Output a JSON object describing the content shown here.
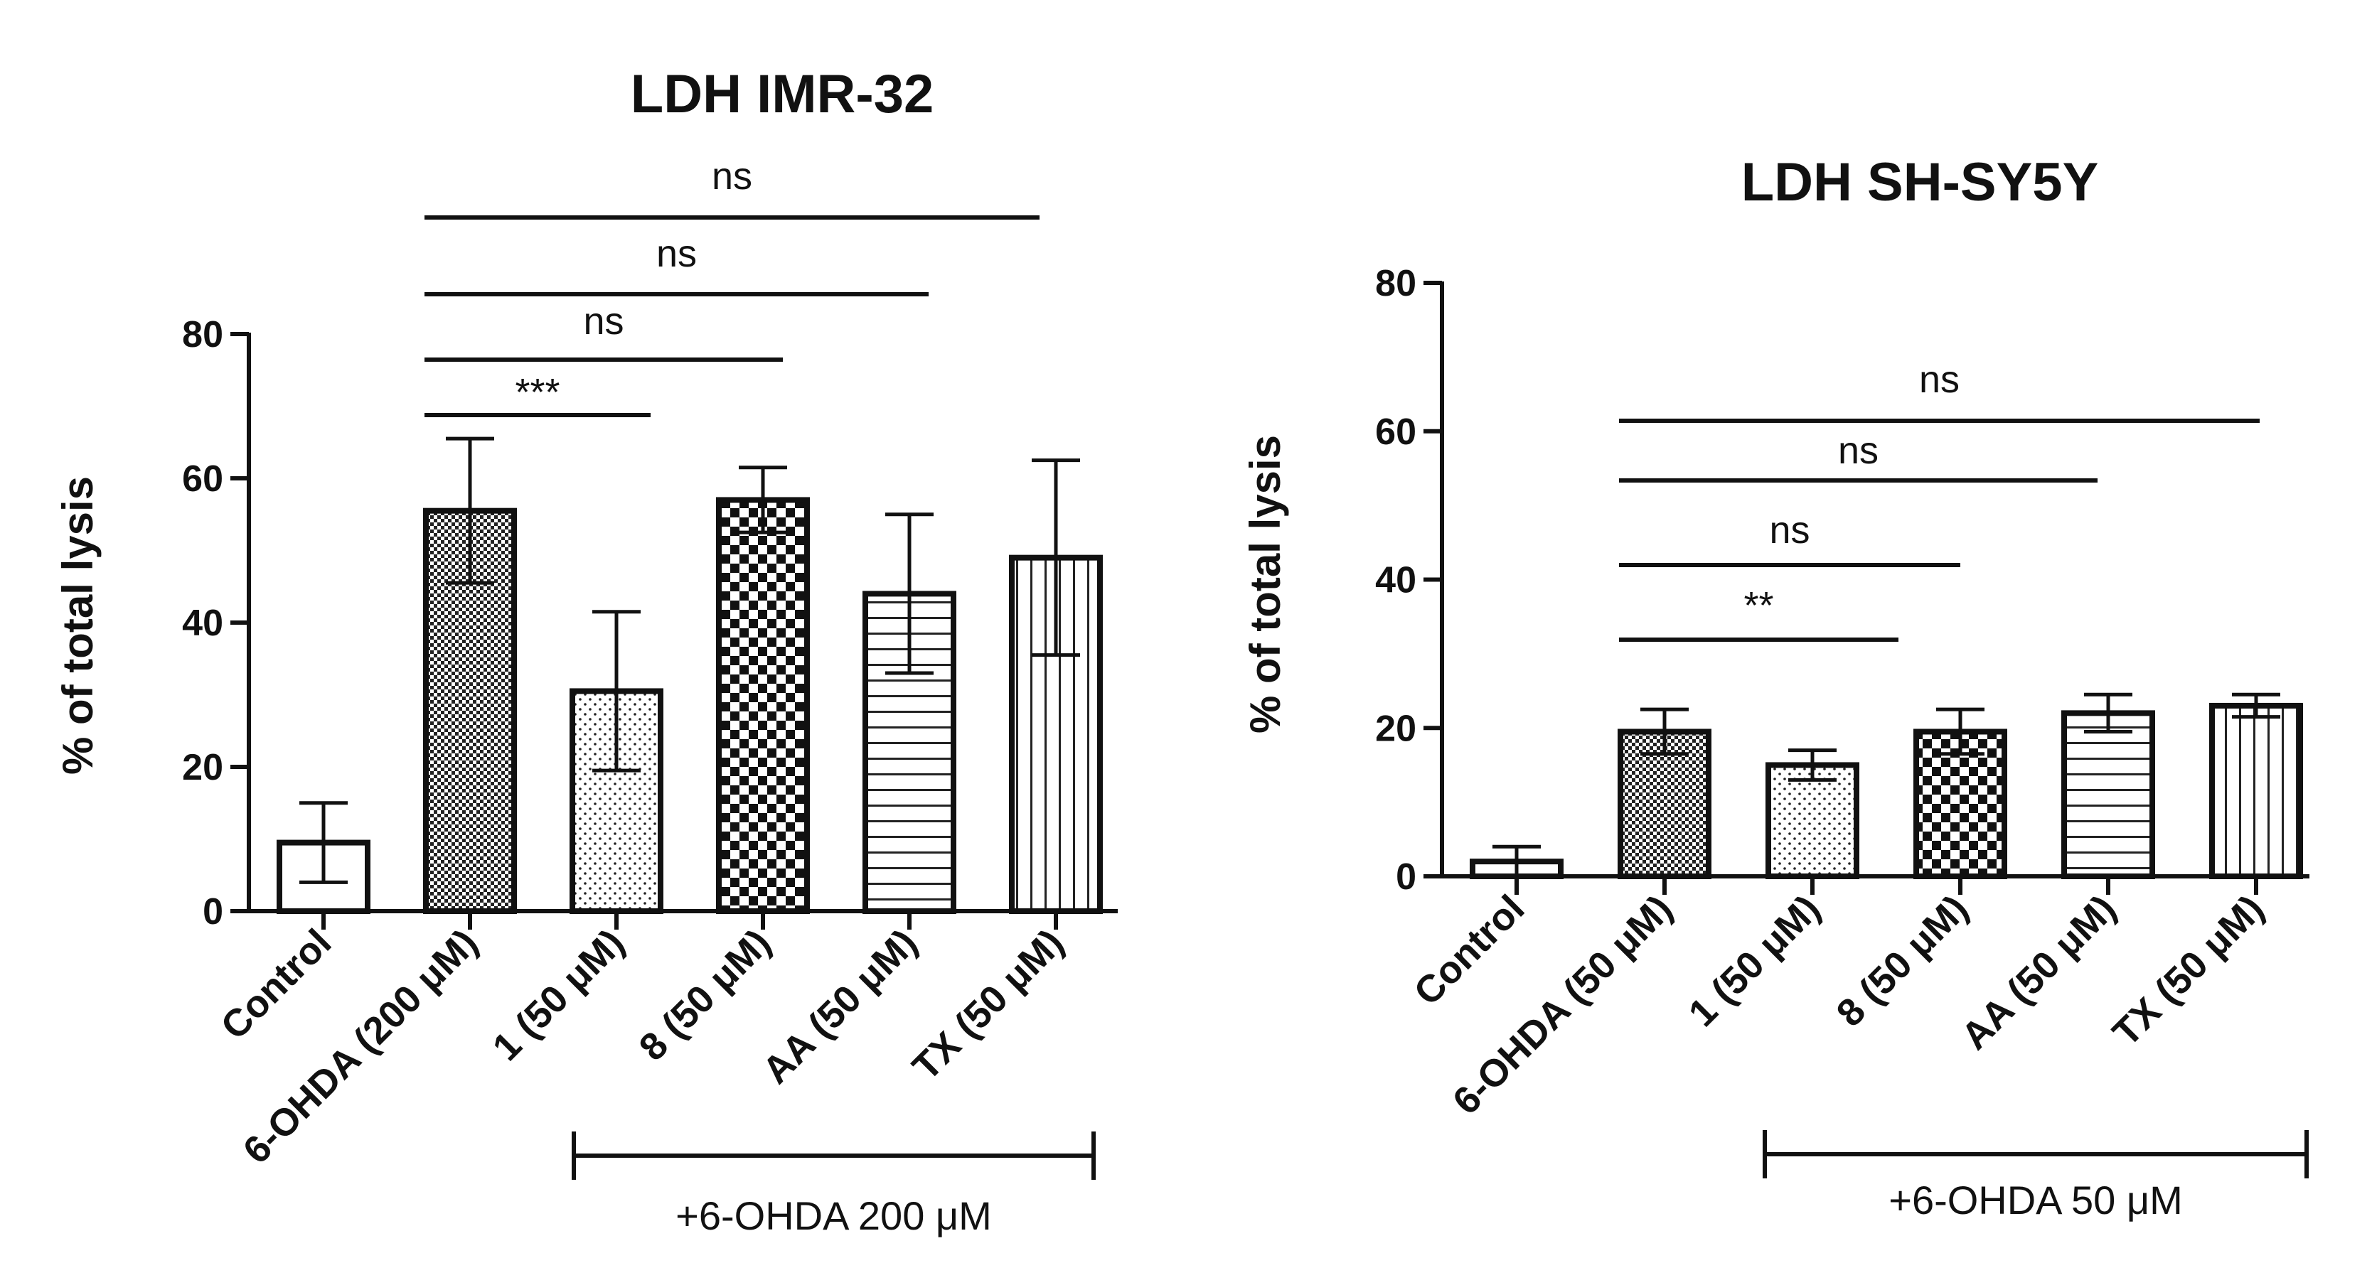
{
  "chart_data": [
    {
      "type": "bar",
      "title": "LDH  IMR-32",
      "ylabel": "%  of total lysis",
      "xlabel": "",
      "ylim": [
        0,
        80
      ],
      "yticks": [
        "0",
        "20",
        "40",
        "60",
        "80"
      ],
      "categories": [
        "Control",
        "6-OHDA (200  μM)",
        "1 (50  μM)",
        "8 (50 μM)",
        "AA (50 μM)",
        "TX (50 μM)"
      ],
      "values": [
        9.5,
        55.5,
        30.5,
        57,
        44,
        49
      ],
      "errors": [
        5.5,
        10,
        11,
        4.5,
        11,
        13.5
      ],
      "patterns": [
        "none",
        "fine-check",
        "dots",
        "check",
        "hlines",
        "vlines"
      ],
      "comparisons": [
        {
          "from": 1,
          "to": 2,
          "label": "***"
        },
        {
          "from": 1,
          "to": 3,
          "label": "ns"
        },
        {
          "from": 1,
          "to": 4,
          "label": "ns"
        },
        {
          "from": 1,
          "to": 5,
          "label": "ns"
        }
      ],
      "bracket": {
        "from": 2,
        "to": 5,
        "label": "+6-OHDA  200 μM"
      }
    },
    {
      "type": "bar",
      "title": "LDH SH-SY5Y",
      "ylabel": "% of total lysis",
      "xlabel": "",
      "ylim": [
        0,
        80
      ],
      "yticks": [
        "0",
        "20",
        "40",
        "60",
        "80"
      ],
      "categories": [
        "Control",
        "6-OHDA (50  μM)",
        "1 (50  μM)",
        "8 (50  μM)",
        "AA (50  μM)",
        "TX (50  μM)"
      ],
      "values": [
        2,
        19.5,
        15,
        19.5,
        22,
        23
      ],
      "errors": [
        2,
        3,
        2,
        3,
        2.5,
        1.5
      ],
      "patterns": [
        "none",
        "fine-check",
        "dots",
        "check",
        "hlines",
        "vlines"
      ],
      "comparisons": [
        {
          "from": 1,
          "to": 2,
          "label": "**"
        },
        {
          "from": 1,
          "to": 3,
          "label": "ns"
        },
        {
          "from": 1,
          "to": 4,
          "label": "ns"
        },
        {
          "from": 1,
          "to": 5,
          "label": "ns"
        }
      ],
      "bracket": {
        "from": 2,
        "to": 5,
        "label": "+6-OHDA 50 μM"
      }
    }
  ]
}
